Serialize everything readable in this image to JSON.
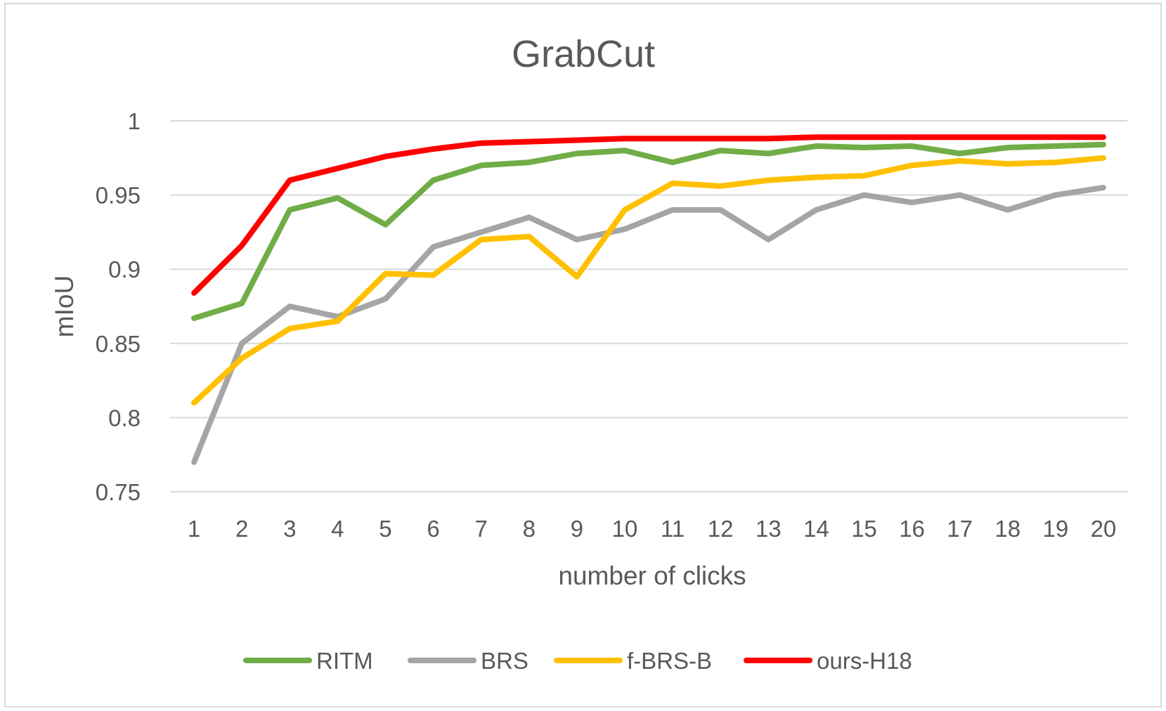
{
  "chart_data": {
    "type": "line",
    "title": "GrabCut",
    "xlabel": "number of clicks",
    "ylabel": "mIoU",
    "x": [
      1,
      2,
      3,
      4,
      5,
      6,
      7,
      8,
      9,
      10,
      11,
      12,
      13,
      14,
      15,
      16,
      17,
      18,
      19,
      20
    ],
    "ylim": [
      0.75,
      1
    ],
    "yticks": [
      "0.75",
      "0.8",
      "0.85",
      "0.9",
      "0.95",
      "1"
    ],
    "grid": true,
    "legend_position": "bottom",
    "series": [
      {
        "name": "RITM",
        "color": "#70ad47",
        "values": [
          0.867,
          0.877,
          0.94,
          0.948,
          0.93,
          0.96,
          0.97,
          0.972,
          0.978,
          0.98,
          0.972,
          0.98,
          0.978,
          0.983,
          0.982,
          0.983,
          0.978,
          0.982,
          0.983,
          0.984
        ]
      },
      {
        "name": "BRS",
        "color": "#a5a5a5",
        "values": [
          0.77,
          0.85,
          0.875,
          0.868,
          0.88,
          0.915,
          0.925,
          0.935,
          0.92,
          0.927,
          0.94,
          0.94,
          0.92,
          0.94,
          0.95,
          0.945,
          0.95,
          0.94,
          0.95,
          0.955
        ]
      },
      {
        "name": "f-BRS-B",
        "color": "#ffc000",
        "values": [
          0.81,
          0.84,
          0.86,
          0.865,
          0.897,
          0.896,
          0.92,
          0.922,
          0.895,
          0.94,
          0.958,
          0.956,
          0.96,
          0.962,
          0.963,
          0.97,
          0.973,
          0.971,
          0.972,
          0.975
        ]
      },
      {
        "name": "ours-H18",
        "color": "#ff0000",
        "values": [
          0.884,
          0.916,
          0.96,
          0.968,
          0.976,
          0.981,
          0.985,
          0.986,
          0.987,
          0.988,
          0.988,
          0.988,
          0.988,
          0.989,
          0.989,
          0.989,
          0.989,
          0.989,
          0.989,
          0.989
        ]
      }
    ]
  }
}
